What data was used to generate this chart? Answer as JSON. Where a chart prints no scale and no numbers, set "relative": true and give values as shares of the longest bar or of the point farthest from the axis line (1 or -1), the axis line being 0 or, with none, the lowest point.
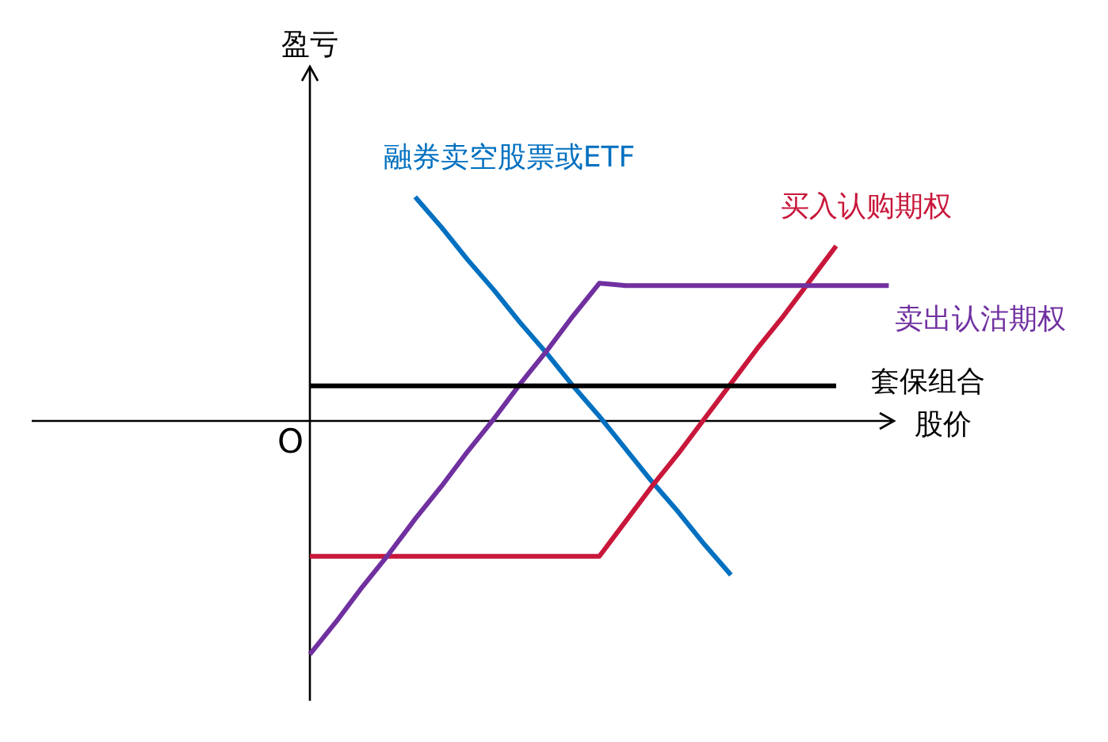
{
  "chart_data": {
    "type": "line",
    "relative": true,
    "xlabel": "股价",
    "ylabel": "盈亏",
    "line_style": "solid",
    "annotations": [
      "O"
    ],
    "categories": [
      null,
      null,
      null,
      null,
      null,
      null,
      null,
      null,
      null,
      null,
      null,
      null,
      null,
      null,
      null,
      null,
      null,
      null,
      null,
      null,
      null,
      null,
      null
    ],
    "series": [
      {
        "name": "融券卖空股票或ETF",
        "color": "#0070c0",
        "values": [
          null,
          null,
          null,
          null,
          0.96,
          0.83,
          0.69,
          0.56,
          0.42,
          0.29,
          0.15,
          0.02,
          -0.12,
          -0.26,
          -0.39,
          -0.53,
          -0.66,
          null,
          null,
          null,
          null,
          null,
          null
        ]
      },
      {
        "name": "买入认购期权",
        "color": "#c8173a",
        "values": [
          -0.58,
          -0.58,
          -0.58,
          -0.58,
          -0.58,
          -0.58,
          -0.58,
          -0.58,
          -0.58,
          -0.58,
          -0.58,
          -0.58,
          -0.43,
          -0.28,
          -0.14,
          0.01,
          0.16,
          0.31,
          0.45,
          0.6,
          0.75,
          null,
          null
        ]
      },
      {
        "name": "卖出认沽期权",
        "color": "#7030a0",
        "values": [
          -1,
          -0.86,
          -0.71,
          -0.57,
          -0.42,
          -0.28,
          -0.13,
          0.01,
          0.16,
          0.3,
          0.45,
          0.59,
          0.58,
          0.58,
          0.58,
          0.58,
          0.58,
          0.58,
          0.58,
          0.58,
          0.58,
          0.58,
          0.58
        ]
      },
      {
        "name": "套保组合",
        "color": "#000000",
        "values": [
          0.15,
          0.15,
          0.15,
          0.15,
          0.15,
          0.15,
          0.15,
          0.15,
          0.15,
          0.15,
          0.15,
          0.15,
          0.15,
          0.15,
          0.15,
          0.15,
          0.15,
          0.15,
          0.15,
          0.15,
          0.15,
          null,
          null
        ]
      }
    ]
  }
}
